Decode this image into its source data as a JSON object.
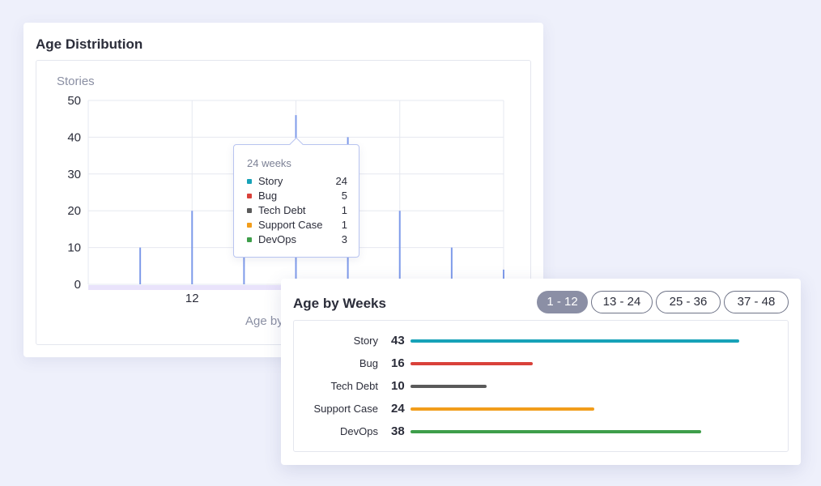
{
  "distribution": {
    "title": "Age Distribution",
    "tooltip": {
      "title": "24 weeks",
      "rows": [
        {
          "name": "Story",
          "value": "24",
          "color": "#17a2b8"
        },
        {
          "name": "Bug",
          "value": "5",
          "color": "#d9413a"
        },
        {
          "name": "Tech Debt",
          "value": "1",
          "color": "#5a5a5a"
        },
        {
          "name": "Support Case",
          "value": "1",
          "color": "#f29d1b"
        },
        {
          "name": "DevOps",
          "value": "3",
          "color": "#3e9e4a"
        }
      ]
    }
  },
  "weeks": {
    "title": "Age by Weeks",
    "ranges": [
      {
        "label": "1 - 12",
        "active": true
      },
      {
        "label": "13 - 24",
        "active": false
      },
      {
        "label": "25 - 36",
        "active": false
      },
      {
        "label": "37 - 48",
        "active": false
      }
    ]
  },
  "chart_data": [
    {
      "type": "bar",
      "title": "Age Distribution",
      "ylabel": "Stories",
      "xlabel": "Age by",
      "ylim": [
        0,
        50
      ],
      "yticks": [
        0,
        10,
        20,
        30,
        40,
        50
      ],
      "xlim": [
        0,
        48
      ],
      "xticks": [
        12
      ],
      "x": [
        6,
        12,
        18,
        24,
        30,
        36,
        42,
        48
      ],
      "values": [
        10,
        20,
        8,
        46,
        40,
        20,
        10,
        4
      ],
      "color": "#7f9bea",
      "grid": true
    },
    {
      "type": "bar",
      "orientation": "horizontal",
      "title": "Age by Weeks",
      "categories": [
        "Story",
        "Bug",
        "Tech Debt",
        "Support Case",
        "DevOps"
      ],
      "values": [
        43,
        16,
        10,
        24,
        38
      ],
      "colors": [
        "#17a2b8",
        "#d9413a",
        "#5a5a5a",
        "#f29d1b",
        "#3e9e4a"
      ],
      "max": 43
    }
  ]
}
